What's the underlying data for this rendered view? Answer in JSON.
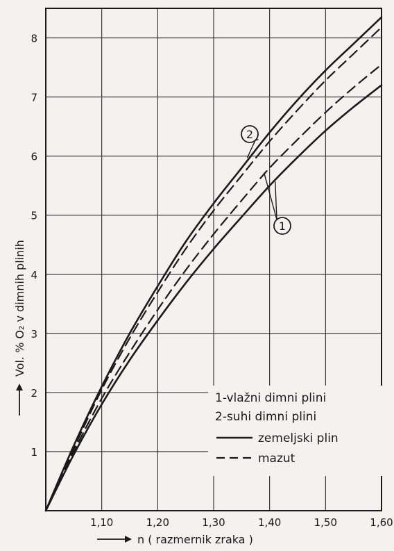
{
  "chart_data": {
    "type": "line",
    "title": "",
    "xlabel": "n ( razmernik zraka )",
    "ylabel": "Vol. % O₂ v dimnih plinih",
    "xlim": [
      1.0,
      1.6
    ],
    "ylim": [
      0,
      8.5
    ],
    "grid": true,
    "x_ticks": [
      "1,10",
      "1,20",
      "1,30",
      "1,40",
      "1,50",
      "1,60"
    ],
    "x_tick_values": [
      1.1,
      1.2,
      1.3,
      1.4,
      1.5,
      1.6
    ],
    "y_ticks": [
      "1",
      "2",
      "3",
      "4",
      "5",
      "6",
      "7",
      "8"
    ],
    "y_tick_values": [
      1,
      2,
      3,
      4,
      5,
      6,
      7,
      8
    ],
    "legend": {
      "placement": "lower-right",
      "items": [
        {
          "text": "1-vlažni dimni plini",
          "style": "none"
        },
        {
          "text": "2-suhi dimni plini",
          "style": "none"
        },
        {
          "text": "zemeljski plin",
          "style": "solid"
        },
        {
          "text": "mazut",
          "style": "dashed"
        }
      ]
    },
    "series": [
      {
        "group": "2",
        "style": "solid",
        "x": [
          1.0,
          1.05,
          1.1,
          1.15,
          1.2,
          1.25,
          1.3,
          1.35,
          1.4,
          1.45,
          1.5,
          1.55,
          1.6
        ],
        "values": [
          0,
          1.1,
          2.1,
          3.0,
          3.8,
          4.55,
          5.2,
          5.8,
          6.4,
          6.95,
          7.45,
          7.9,
          8.35
        ]
      },
      {
        "group": "2",
        "style": "dashed",
        "x": [
          1.0,
          1.05,
          1.1,
          1.15,
          1.2,
          1.25,
          1.3,
          1.35,
          1.4,
          1.45,
          1.5,
          1.55,
          1.6
        ],
        "values": [
          0,
          1.05,
          2.05,
          2.92,
          3.7,
          4.43,
          5.08,
          5.67,
          6.25,
          6.78,
          7.28,
          7.73,
          8.18
        ]
      },
      {
        "group": "1",
        "style": "dashed",
        "x": [
          1.0,
          1.05,
          1.1,
          1.15,
          1.2,
          1.25,
          1.3,
          1.35,
          1.4,
          1.45,
          1.5,
          1.55,
          1.6
        ],
        "values": [
          0,
          1.0,
          1.9,
          2.68,
          3.4,
          4.07,
          4.68,
          5.25,
          5.8,
          6.28,
          6.74,
          7.16,
          7.55
        ]
      },
      {
        "group": "1",
        "style": "solid",
        "x": [
          1.0,
          1.05,
          1.1,
          1.15,
          1.2,
          1.25,
          1.3,
          1.35,
          1.4,
          1.45,
          1.5,
          1.55,
          1.6
        ],
        "values": [
          0,
          0.95,
          1.8,
          2.55,
          3.22,
          3.85,
          4.43,
          4.97,
          5.5,
          5.98,
          6.43,
          6.83,
          7.2
        ]
      }
    ],
    "callouts": [
      {
        "label": "2",
        "points_to_group": "2"
      },
      {
        "label": "1",
        "points_to_group": "1"
      }
    ]
  }
}
